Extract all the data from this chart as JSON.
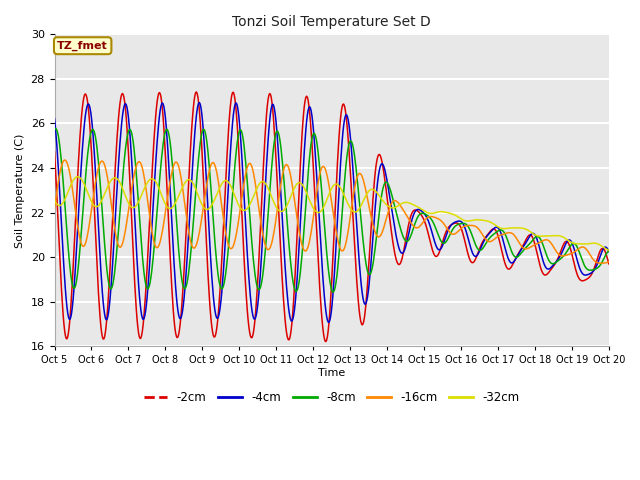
{
  "title": "Tonzi Soil Temperature Set D",
  "xlabel": "Time",
  "ylabel": "Soil Temperature (C)",
  "ylim": [
    16,
    30
  ],
  "x_tick_labels": [
    "Oct 5",
    "Oct 6",
    "Oct 7",
    "Oct 8",
    "Oct 9",
    "Oct 10",
    "Oct 11",
    "Oct 12",
    "Oct 13",
    "Oct 14",
    "Oct 15",
    "Oct 16",
    "Oct 17",
    "Oct 18",
    "Oct 19",
    "Oct 20"
  ],
  "shade_band_color": "#e8e8e8",
  "plot_bg": "#e8e8e8",
  "grid_color": "#ffffff",
  "label_box_text": "TZ_fmet",
  "label_box_color": "#ffffcc",
  "label_box_border": "#aa8800",
  "label_text_color": "#8b0000",
  "series_colors": [
    "#dd0000",
    "#0000cc",
    "#00aa00",
    "#ff8800",
    "#dddd00"
  ],
  "series_labels": [
    "-2cm",
    "-4cm",
    "-8cm",
    "-16cm",
    "-32cm"
  ],
  "linewidth": 1.1,
  "bg_color": "#ffffff"
}
